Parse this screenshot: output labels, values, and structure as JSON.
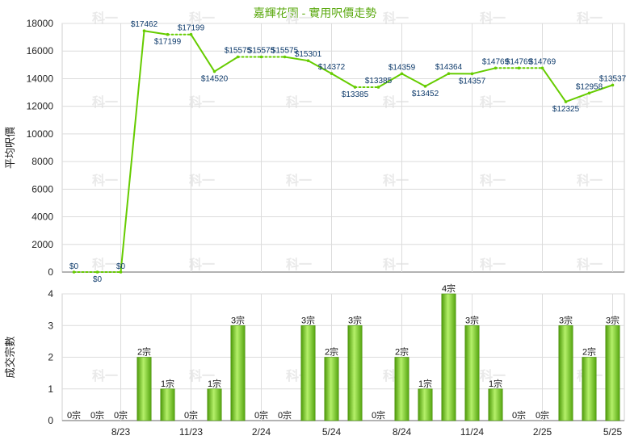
{
  "chart_data": [
    {
      "type": "line",
      "title": "嘉輝花園 - 實用呎價走勢",
      "ylabel": "平均呎價",
      "ylim": [
        0,
        18000
      ],
      "yticks": [
        "0",
        "2000",
        "4000",
        "6000",
        "8000",
        "10000",
        "12000",
        "14000",
        "16000",
        "18000"
      ],
      "series": [
        {
          "values": [
            0,
            0,
            0,
            17462,
            17199,
            17199,
            14520,
            15575,
            15575,
            15575,
            15301,
            14372,
            13385,
            13385,
            14359,
            13452,
            14364,
            14357,
            14769,
            14769,
            14769,
            12325,
            12958,
            13537
          ],
          "labels": [
            "$0",
            "$0",
            "$0",
            "$17462",
            "$17199",
            "$17199",
            "$14520",
            "$15575",
            "$15575",
            "$15575",
            "$15301",
            "$14372",
            "$13385",
            "$13385",
            "$14359",
            "$13452",
            "$14364",
            "$14357",
            "$14769",
            "$14769",
            "$14769",
            "$12325",
            "$12958",
            "$13537"
          ]
        }
      ],
      "grid": true
    },
    {
      "type": "bar",
      "ylabel": "成交宗數",
      "ylim": [
        0,
        4
      ],
      "yticks": [
        "0",
        "1",
        "2",
        "3",
        "4"
      ],
      "categories": [
        "8/23",
        "11/23",
        "2/24",
        "5/24",
        "8/24",
        "11/24",
        "2/25",
        "5/25"
      ],
      "values": [
        0,
        0,
        0,
        2,
        1,
        0,
        1,
        3,
        0,
        0,
        3,
        2,
        3,
        0,
        2,
        1,
        4,
        3,
        1,
        0,
        0,
        3,
        2,
        3
      ],
      "labels": [
        "0宗",
        "0宗",
        "0宗",
        "2宗",
        "1宗",
        "0宗",
        "1宗",
        "3宗",
        "0宗",
        "0宗",
        "3宗",
        "2宗",
        "3宗",
        "0宗",
        "2宗",
        "1宗",
        "4宗",
        "3宗",
        "1宗",
        "0宗",
        "0宗",
        "3宗",
        "2宗",
        "3宗"
      ],
      "grid": true
    }
  ],
  "watermark": "科一",
  "colors": {
    "line": "#66cc00",
    "bar": "#66bb11",
    "title": "#5aa80e"
  }
}
